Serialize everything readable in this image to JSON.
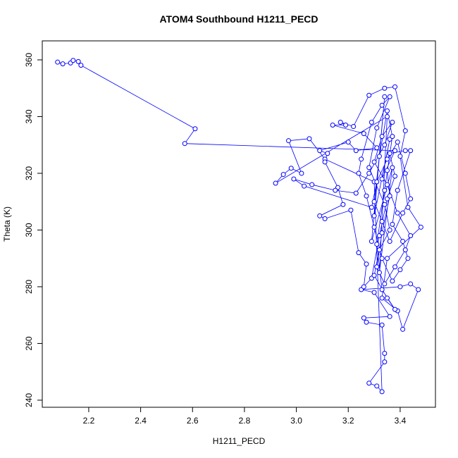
{
  "chart_data": {
    "type": "line",
    "markers": true,
    "title": "ATOM4 Southbound H1211_PECD",
    "x_label": "H1211_PECD",
    "y_label": "Theta (K)",
    "color": "#0000ff",
    "xlim": [
      2.021,
      3.536
    ],
    "xticks": [
      2.2,
      2.4,
      2.6,
      2.8,
      3.0,
      3.2,
      3.4
    ],
    "ylim": [
      237.5,
      366.7
    ],
    "yticks": [
      240,
      260,
      280,
      300,
      320,
      340,
      360
    ],
    "x": [
      2.08,
      2.1,
      2.13,
      2.14,
      2.16,
      2.17,
      2.61,
      2.57,
      3.38,
      3.33,
      3.36,
      3.3,
      3.34,
      3.29,
      3.37,
      3.32,
      3.35,
      2.92,
      2.95,
      2.98,
      3.02,
      2.97,
      3.05,
      3.11,
      3.3,
      3.33,
      3.31,
      3.28,
      3.34,
      3.34,
      3.33,
      3.27,
      3.26,
      3.36,
      3.3,
      3.25,
      3.4,
      3.44,
      3.47,
      3.41,
      3.39,
      3.33,
      3.35,
      3.48,
      3.43,
      3.4,
      3.42,
      3.38,
      3.34,
      3.28,
      3.22,
      3.17,
      3.19,
      3.14,
      3.26,
      3.31,
      3.23,
      3.2,
      3.09,
      3.12,
      3.11,
      3.16,
      3.18,
      3.09,
      3.11,
      3.21,
      3.24,
      3.27,
      3.26,
      3.29,
      3.32,
      3.35,
      3.38,
      3.36,
      3.42,
      3.44,
      3.39,
      3.37,
      3.41,
      3.43,
      3.4,
      3.37,
      3.33,
      3.3,
      3.27,
      3.24,
      3.25,
      3.29,
      3.33,
      3.36,
      3.31,
      3.28,
      3.34,
      3.36,
      3.32,
      3.3,
      3.35,
      3.38,
      3.33,
      3.31,
      3.34,
      3.37,
      3.35,
      3.32,
      3.3,
      3.33,
      3.36,
      3.41,
      3.44,
      3.42,
      3.39,
      3.35,
      3.31,
      3.29,
      3.03,
      2.99,
      3.06,
      3.15,
      3.23,
      3.28,
      3.34,
      3.37,
      3.33,
      3.3,
      3.35,
      3.39,
      3.44,
      3.42,
      3.38,
      3.34,
      3.31,
      3.33,
      3.36,
      3.35
    ],
    "values": [
      359.2,
      358.6,
      358.9,
      359.8,
      359.4,
      358.1,
      335.7,
      330.5,
      328,
      318,
      332,
      305,
      347,
      296,
      322,
      285,
      340,
      316.5,
      319.6,
      321.8,
      320,
      331.5,
      332.2,
      325,
      317,
      243,
      245,
      246,
      253.5,
      256.5,
      266.5,
      267.5,
      269,
      269.5,
      278,
      279,
      280,
      281,
      279,
      265,
      271.5,
      276,
      290,
      301,
      308,
      326,
      335,
      350.5,
      350,
      347.5,
      336.5,
      338,
      337,
      337,
      334,
      329,
      328,
      331,
      328,
      327,
      324,
      315,
      309,
      305,
      304,
      307,
      292,
      288,
      280,
      283,
      298,
      311,
      319,
      327,
      328,
      328,
      314,
      302,
      296,
      290,
      286,
      282,
      290,
      301,
      312,
      320,
      325,
      338,
      344,
      347,
      336,
      322,
      309,
      300,
      293,
      284,
      276,
      272,
      279,
      295,
      314,
      333,
      342,
      326,
      310,
      303,
      296,
      306,
      311,
      320,
      331,
      325,
      317,
      308,
      315.5,
      318,
      316,
      314,
      313,
      320,
      330,
      338,
      333,
      324,
      316,
      306,
      298,
      293,
      287,
      281,
      287,
      299,
      312,
      321
    ]
  }
}
